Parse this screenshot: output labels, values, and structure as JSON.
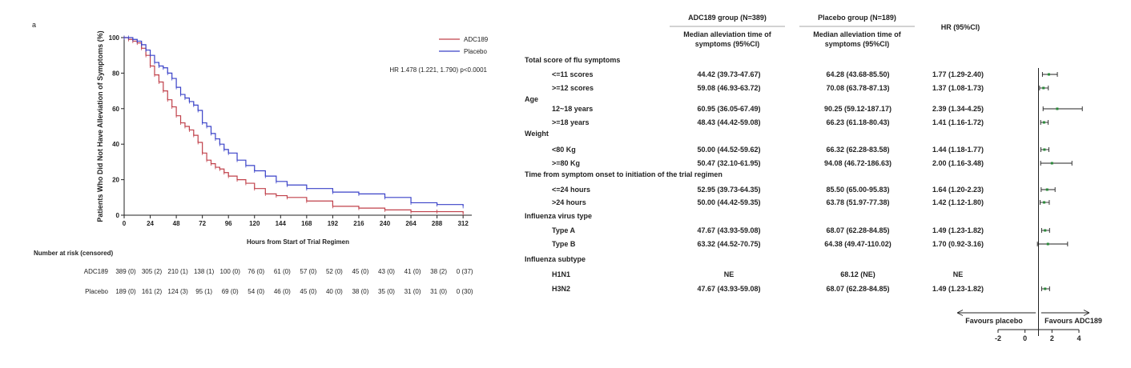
{
  "km": {
    "panel_label": "a",
    "ylabel": "Patients Who Did Not Have Alleviation of Symptoms (%)",
    "xlabel": "Hours from Start of Trial Regimen",
    "hr_text": "HR 1.478 (1.221, 1.790) p<0.0001",
    "risk_title": "Number at risk (censored)",
    "colors": {
      "adc189": "#c0404a",
      "placebo": "#3a42c8"
    }
  },
  "chart_data": [
    {
      "type": "line",
      "title": "",
      "xlabel": "Hours from Start of Trial Regimen",
      "ylabel": "Patients Who Did Not Have Alleviation of Symptoms (%)",
      "xlim": [
        0,
        320
      ],
      "ylim": [
        0,
        100
      ],
      "x_ticks": [
        0,
        24,
        48,
        72,
        96,
        120,
        144,
        168,
        192,
        216,
        240,
        264,
        288,
        312
      ],
      "y_ticks": [
        0,
        20,
        40,
        60,
        80,
        100
      ],
      "legend": "top-right",
      "series": [
        {
          "name": "ADC189",
          "points": [
            [
              0,
              100
            ],
            [
              4,
              99
            ],
            [
              8,
              98
            ],
            [
              12,
              97
            ],
            [
              16,
              94
            ],
            [
              20,
              90
            ],
            [
              24,
              84
            ],
            [
              28,
              79
            ],
            [
              32,
              75
            ],
            [
              36,
              70
            ],
            [
              40,
              65
            ],
            [
              44,
              61
            ],
            [
              48,
              56
            ],
            [
              52,
              52
            ],
            [
              56,
              50
            ],
            [
              60,
              48
            ],
            [
              64,
              45
            ],
            [
              68,
              41
            ],
            [
              72,
              35
            ],
            [
              76,
              31
            ],
            [
              80,
              29
            ],
            [
              84,
              27
            ],
            [
              88,
              26
            ],
            [
              92,
              24
            ],
            [
              96,
              22
            ],
            [
              104,
              20
            ],
            [
              112,
              18
            ],
            [
              120,
              15
            ],
            [
              130,
              12
            ],
            [
              140,
              11
            ],
            [
              150,
              10
            ],
            [
              168,
              8
            ],
            [
              192,
              5
            ],
            [
              216,
              4
            ],
            [
              240,
              3
            ],
            [
              264,
              2
            ],
            [
              288,
              2
            ],
            [
              312,
              1
            ]
          ],
          "risk": [
            "389 (0)",
            "305 (2)",
            "210 (1)",
            "138 (1)",
            "100 (0)",
            "76 (0)",
            "61 (0)",
            "57 (0)",
            "52 (0)",
            "45 (0)",
            "43 (0)",
            "41 (0)",
            "38 (2)",
            "0 (37)"
          ]
        },
        {
          "name": "Placebo",
          "points": [
            [
              0,
              100
            ],
            [
              4,
              100
            ],
            [
              8,
              99
            ],
            [
              12,
              98
            ],
            [
              16,
              96
            ],
            [
              20,
              93
            ],
            [
              24,
              90
            ],
            [
              28,
              86
            ],
            [
              32,
              84
            ],
            [
              36,
              83
            ],
            [
              40,
              80
            ],
            [
              44,
              77
            ],
            [
              48,
              72
            ],
            [
              52,
              68
            ],
            [
              56,
              66
            ],
            [
              60,
              64
            ],
            [
              64,
              62
            ],
            [
              68,
              59
            ],
            [
              72,
              52
            ],
            [
              76,
              50
            ],
            [
              80,
              46
            ],
            [
              84,
              43
            ],
            [
              88,
              40
            ],
            [
              92,
              37
            ],
            [
              96,
              35
            ],
            [
              104,
              31
            ],
            [
              112,
              28
            ],
            [
              120,
              25
            ],
            [
              130,
              22
            ],
            [
              140,
              19
            ],
            [
              150,
              17
            ],
            [
              168,
              15
            ],
            [
              192,
              13
            ],
            [
              216,
              12
            ],
            [
              240,
              10
            ],
            [
              264,
              7
            ],
            [
              288,
              6
            ],
            [
              312,
              5
            ]
          ],
          "risk": [
            "189 (0)",
            "161 (2)",
            "124 (3)",
            "95 (1)",
            "69 (0)",
            "54 (0)",
            "46 (0)",
            "45 (0)",
            "40 (0)",
            "38 (0)",
            "35 (0)",
            "31 (0)",
            "31 (0)",
            "0 (30)"
          ]
        }
      ]
    },
    {
      "type": "table",
      "header": {
        "adc_group": "ADC189 group (N=389)",
        "placebo_group": "Placebo group (N=189)",
        "median_col": "Median alleviation time of symptoms (95%CI)",
        "hr_col": "HR (95%CI)"
      },
      "xlim": [
        -2,
        4
      ],
      "x_ticks": [
        -2,
        0,
        2,
        4
      ],
      "left_arrow": "Favours placebo",
      "right_arrow": "Favours ADC189",
      "rows": [
        {
          "label": "Total score of flu symptoms",
          "category": true
        },
        {
          "label": "<=11 scores",
          "adc": "44.42 (39.73-47.67)",
          "placebo": "64.28 (43.68-85.50)",
          "hr_text": "1.77 (1.29-2.40)",
          "hr": 1.77,
          "lo": 1.29,
          "hi": 2.4
        },
        {
          "label": ">=12 scores",
          "adc": "59.08 (46.93-63.72)",
          "placebo": "70.08 (63.78-87.13)",
          "hr_text": "1.37 (1.08-1.73)",
          "hr": 1.37,
          "lo": 1.08,
          "hi": 1.73
        },
        {
          "label": "Age",
          "category": true
        },
        {
          "label": "12~18 years",
          "adc": "60.95 (36.05-67.49)",
          "placebo": "90.25 (59.12-187.17)",
          "hr_text": "2.39 (1.34-4.25)",
          "hr": 2.39,
          "lo": 1.34,
          "hi": 4.25
        },
        {
          "label": ">=18 years",
          "adc": "48.43 (44.42-59.08)",
          "placebo": "66.23 (61.18-80.43)",
          "hr_text": "1.41 (1.16-1.72)",
          "hr": 1.41,
          "lo": 1.16,
          "hi": 1.72
        },
        {
          "label": "Weight",
          "category": true
        },
        {
          "label": "<80 Kg",
          "adc": "50.00 (44.52-59.62)",
          "placebo": "66.32 (62.28-83.58)",
          "hr_text": "1.44 (1.18-1.77)",
          "hr": 1.44,
          "lo": 1.18,
          "hi": 1.77
        },
        {
          "label": ">=80 Kg",
          "adc": "50.47 (32.10-61.95)",
          "placebo": "94.08 (46.72-186.63)",
          "hr_text": "2.00 (1.16-3.48)",
          "hr": 2.0,
          "lo": 1.16,
          "hi": 3.48
        },
        {
          "label": "Time from symptom onset to initiation of the trial regimen",
          "category": true
        },
        {
          "label": "<=24 hours",
          "adc": "52.95 (39.73-64.35)",
          "placebo": "85.50 (65.00-95.83)",
          "hr_text": "1.64 (1.20-2.23)",
          "hr": 1.64,
          "lo": 1.2,
          "hi": 2.23
        },
        {
          "label": ">24 hours",
          "adc": "50.00 (44.42-59.35)",
          "placebo": "63.78 (51.97-77.38)",
          "hr_text": "1.42 (1.12-1.80)",
          "hr": 1.42,
          "lo": 1.12,
          "hi": 1.8
        },
        {
          "label": "Influenza virus type",
          "category": true
        },
        {
          "label": "Type A",
          "adc": "47.67 (43.93-59.08)",
          "placebo": "68.07 (62.28-84.85)",
          "hr_text": "1.49 (1.23-1.82)",
          "hr": 1.49,
          "lo": 1.23,
          "hi": 1.82
        },
        {
          "label": "Type B",
          "adc": "63.32 (44.52-70.75)",
          "placebo": "64.38 (49.47-110.02)",
          "hr_text": "1.70 (0.92-3.16)",
          "hr": 1.7,
          "lo": 0.92,
          "hi": 3.16
        },
        {
          "label": "Influenza subtype",
          "category": true
        },
        {
          "label": "H1N1",
          "adc": "NE",
          "placebo": "68.12 (NE)",
          "hr_text": "NE",
          "hr": null,
          "lo": null,
          "hi": null
        },
        {
          "label": "H3N2",
          "adc": "47.67 (43.93-59.08)",
          "placebo": "68.07 (62.28-84.85)",
          "hr_text": "1.49 (1.23-1.82)",
          "hr": 1.49,
          "lo": 1.23,
          "hi": 1.82
        }
      ]
    }
  ]
}
